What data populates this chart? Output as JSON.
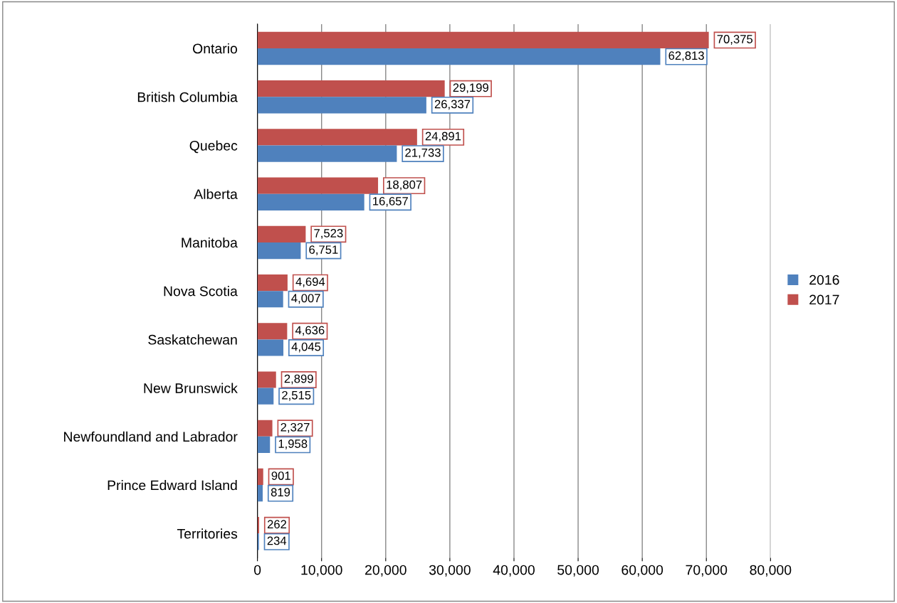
{
  "chart_data": {
    "type": "bar",
    "orientation": "horizontal",
    "categories": [
      "Ontario",
      "British Columbia",
      "Quebec",
      "Alberta",
      "Manitoba",
      "Nova Scotia",
      "Saskatchewan",
      "New Brunswick",
      "Newfoundland and Labrador",
      "Prince Edward Island",
      "Territories"
    ],
    "series": [
      {
        "name": "2017",
        "color": "#c0504d",
        "values": [
          70375,
          29199,
          24891,
          18807,
          7523,
          4694,
          4636,
          2899,
          2327,
          901,
          262
        ],
        "value_labels": [
          "70,375",
          "29,199",
          "24,891",
          "18,807",
          "7,523",
          "4,694",
          "4,636",
          "2,899",
          "2,327",
          "901",
          "262"
        ]
      },
      {
        "name": "2016",
        "color": "#4f81bd",
        "values": [
          62813,
          26337,
          21733,
          16657,
          6751,
          4007,
          4045,
          2515,
          1958,
          819,
          234
        ],
        "value_labels": [
          "62,813",
          "26,337",
          "21,733",
          "16,657",
          "6,751",
          "4,007",
          "4,045",
          "2,515",
          "1,958",
          "819",
          "234"
        ]
      }
    ],
    "xlim": [
      0,
      80000
    ],
    "xticks": [
      0,
      {
        "value": 10000,
        "label": "10,000"
      },
      {
        "value": 20000,
        "label": "20,000"
      },
      {
        "value": 30000,
        "label": "30,000"
      },
      {
        "value": 40000,
        "label": "40,000"
      },
      {
        "value": 50000,
        "label": "50,000"
      },
      {
        "value": 60000,
        "label": "60,000"
      },
      {
        "value": 70000,
        "label": "70,000"
      },
      {
        "value": 80000,
        "label": "80,000"
      }
    ],
    "grid": "x",
    "legend": "right"
  }
}
